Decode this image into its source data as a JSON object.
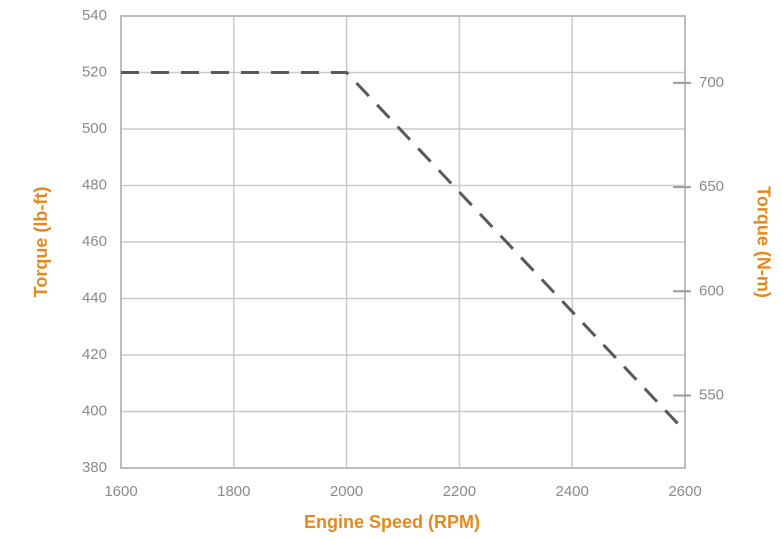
{
  "chart_data": {
    "type": "line",
    "xlabel": "Engine Speed (RPM)",
    "ylabel": "Torque (lb-ft)",
    "y2label": "Torque (N-m)",
    "x": [
      1600,
      2000,
      2600
    ],
    "values": [
      520,
      520,
      393
    ],
    "color": "#58595b",
    "dashed": true,
    "xlim": [
      1600,
      2600
    ],
    "xticks": [
      1600,
      1800,
      2000,
      2200,
      2400,
      2600
    ],
    "ylim": [
      380,
      540
    ],
    "yticks": [
      380,
      400,
      420,
      440,
      460,
      480,
      500,
      520,
      540
    ],
    "y2lim": [
      515.2,
      732.1
    ],
    "y2ticks": [
      550,
      600,
      650,
      700
    ],
    "grid": true
  }
}
